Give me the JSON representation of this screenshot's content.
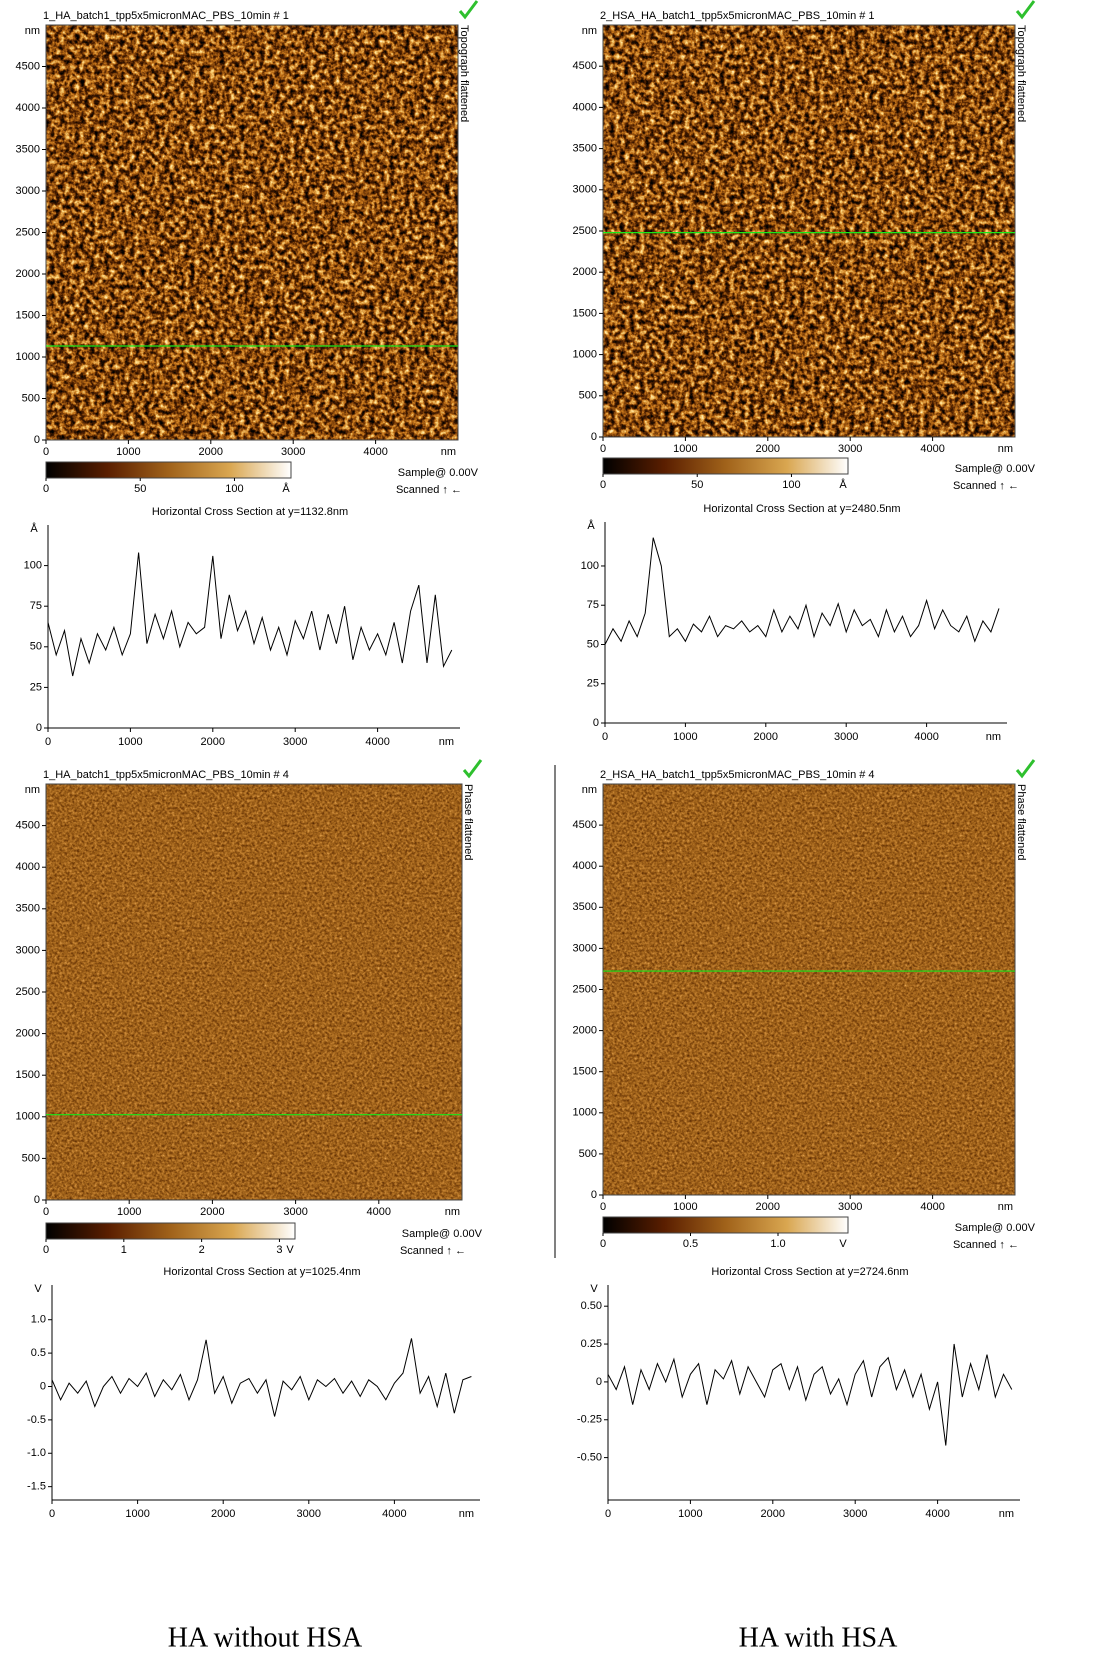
{
  "captions": [
    "HA without HSA",
    "HA with HSA"
  ],
  "chart_data": [
    {
      "type": "image",
      "title": "1_HA_batch1_tpp5x5micronMAC_PBS_10min # 1",
      "side_label": "Topograph flattened",
      "xlim": [
        0,
        5000
      ],
      "ylim": [
        0,
        5000
      ],
      "xticks": [
        0,
        1000,
        2000,
        3000,
        4000
      ],
      "yticks": [
        0,
        500,
        1000,
        1500,
        2000,
        2500,
        3000,
        3500,
        4000,
        4500
      ],
      "x_unit": "nm",
      "y_unit": "nm",
      "line_y": 1132.8,
      "line_color": "#19e619",
      "colorbar": {
        "clim": [
          0,
          130
        ],
        "ticks": [
          0,
          50,
          100
        ],
        "unit": "Å",
        "colors": [
          "#000000",
          "#5a1e00",
          "#a0621a",
          "#d9a650",
          "#ffffff"
        ]
      },
      "bias": "Sample@ 0.00V",
      "scan": "Scanned ↑ ←"
    },
    {
      "type": "line",
      "title": "Horizontal Cross Section at y=1132.8nm",
      "color": "#000000",
      "x": [
        0,
        100,
        200,
        300,
        400,
        500,
        600,
        700,
        800,
        900,
        1000,
        1100,
        1200,
        1300,
        1400,
        1500,
        1600,
        1700,
        1800,
        1900,
        2000,
        2100,
        2200,
        2300,
        2400,
        2500,
        2600,
        2700,
        2800,
        2900,
        3000,
        3100,
        3200,
        3300,
        3400,
        3500,
        3600,
        3700,
        3800,
        3900,
        4000,
        4100,
        4200,
        4300,
        4400,
        4500,
        4600,
        4700,
        4800,
        4900
      ],
      "values": [
        65,
        45,
        60,
        32,
        55,
        40,
        58,
        48,
        62,
        45,
        58,
        108,
        52,
        70,
        55,
        72,
        50,
        65,
        58,
        62,
        106,
        55,
        82,
        60,
        72,
        52,
        68,
        48,
        62,
        45,
        66,
        55,
        72,
        48,
        70,
        52,
        75,
        42,
        62,
        48,
        58,
        45,
        65,
        40,
        72,
        88,
        40,
        82,
        38,
        48
      ],
      "xlim": [
        0,
        5000
      ],
      "ylim": [
        0,
        125
      ],
      "xticks": [
        0,
        1000,
        2000,
        3000,
        4000
      ],
      "yticks": [
        0,
        25,
        50,
        75,
        100
      ],
      "x_unit": "nm",
      "y_unit": "Å"
    },
    {
      "type": "image",
      "title": "2_HSA_HA_batch1_tpp5x5micronMAC_PBS_10min # 1",
      "side_label": "Topograph flattened",
      "xlim": [
        0,
        5000
      ],
      "ylim": [
        0,
        5000
      ],
      "xticks": [
        0,
        1000,
        2000,
        3000,
        4000
      ],
      "yticks": [
        0,
        500,
        1000,
        1500,
        2000,
        2500,
        3000,
        3500,
        4000,
        4500
      ],
      "x_unit": "nm",
      "y_unit": "nm",
      "line_y": 2480.5,
      "line_color": "#19e619",
      "colorbar": {
        "clim": [
          0,
          130
        ],
        "ticks": [
          0,
          50,
          100
        ],
        "unit": "Å",
        "colors": [
          "#000000",
          "#5a1e00",
          "#a0621a",
          "#d9a650",
          "#ffffff"
        ]
      },
      "bias": "Sample@ 0.00V",
      "scan": "Scanned ↑ ←"
    },
    {
      "type": "line",
      "title": "Horizontal Cross Section at y=2480.5nm",
      "color": "#000000",
      "x": [
        0,
        100,
        200,
        300,
        400,
        500,
        600,
        700,
        800,
        900,
        1000,
        1100,
        1200,
        1300,
        1400,
        1500,
        1600,
        1700,
        1800,
        1900,
        2000,
        2100,
        2200,
        2300,
        2400,
        2500,
        2600,
        2700,
        2800,
        2900,
        3000,
        3100,
        3200,
        3300,
        3400,
        3500,
        3600,
        3700,
        3800,
        3900,
        4000,
        4100,
        4200,
        4300,
        4400,
        4500,
        4600,
        4700,
        4800,
        4900
      ],
      "values": [
        50,
        60,
        52,
        65,
        55,
        70,
        118,
        100,
        55,
        60,
        52,
        63,
        58,
        68,
        55,
        62,
        60,
        65,
        58,
        62,
        55,
        72,
        58,
        68,
        60,
        75,
        55,
        70,
        62,
        76,
        58,
        72,
        62,
        66,
        55,
        72,
        58,
        68,
        55,
        62,
        78,
        60,
        72,
        62,
        58,
        68,
        52,
        65,
        58,
        73
      ],
      "xlim": [
        0,
        5000
      ],
      "ylim": [
        0,
        128
      ],
      "xticks": [
        0,
        1000,
        2000,
        3000,
        4000
      ],
      "yticks": [
        0,
        25,
        50,
        75,
        100
      ],
      "x_unit": "nm",
      "y_unit": "Å"
    },
    {
      "type": "image",
      "title": "1_HA_batch1_tpp5x5micronMAC_PBS_10min # 4",
      "side_label": "Phase flattened",
      "xlim": [
        0,
        5000
      ],
      "ylim": [
        0,
        5000
      ],
      "xticks": [
        0,
        1000,
        2000,
        3000,
        4000
      ],
      "yticks": [
        0,
        500,
        1000,
        1500,
        2000,
        2500,
        3000,
        3500,
        4000,
        4500
      ],
      "x_unit": "nm",
      "y_unit": "nm",
      "line_y": 1025.4,
      "line_color": "#19e619",
      "colorbar": {
        "clim": [
          0,
          3.2
        ],
        "ticks": [
          0,
          1,
          2,
          3
        ],
        "unit": "V",
        "colors": [
          "#000000",
          "#5a1e00",
          "#a0621a",
          "#d9a650",
          "#ffffff"
        ]
      },
      "bias": "Sample@ 0.00V",
      "scan": "Scanned ↑ ←"
    },
    {
      "type": "line",
      "title": "Horizontal Cross Section at y=1025.4nm",
      "color": "#000000",
      "x": [
        0,
        100,
        200,
        300,
        400,
        500,
        600,
        700,
        800,
        900,
        1000,
        1100,
        1200,
        1300,
        1400,
        1500,
        1600,
        1700,
        1800,
        1900,
        2000,
        2100,
        2200,
        2300,
        2400,
        2500,
        2600,
        2700,
        2800,
        2900,
        3000,
        3100,
        3200,
        3300,
        3400,
        3500,
        3600,
        3700,
        3800,
        3900,
        4000,
        4100,
        4200,
        4300,
        4400,
        4500,
        4600,
        4700,
        4800,
        4900
      ],
      "values": [
        0.1,
        -0.2,
        0.05,
        -0.1,
        0.08,
        -0.3,
        0.0,
        0.15,
        -0.1,
        0.12,
        0.0,
        0.2,
        -0.15,
        0.1,
        -0.05,
        0.18,
        -0.2,
        0.1,
        0.7,
        -0.1,
        0.15,
        -0.25,
        0.05,
        0.12,
        -0.1,
        0.1,
        -0.45,
        0.08,
        -0.05,
        0.15,
        -0.2,
        0.1,
        0.0,
        0.12,
        -0.1,
        0.08,
        -0.15,
        0.1,
        0.0,
        -0.2,
        0.05,
        0.2,
        0.72,
        -0.1,
        0.15,
        -0.3,
        0.2,
        -0.4,
        0.1,
        0.15
      ],
      "xlim": [
        0,
        5000
      ],
      "ylim": [
        -1.7,
        1.52
      ],
      "xticks": [
        0,
        1000,
        2000,
        3000,
        4000
      ],
      "yticks": [
        -1.5,
        {
          "value": -1,
          "label": "-1.0"
        },
        -0.5,
        0,
        0.5,
        {
          "value": 1,
          "label": "1.0"
        }
      ],
      "x_unit": "nm",
      "y_unit": "V"
    },
    {
      "type": "image",
      "title": "2_HSA_HA_batch1_tpp5x5micronMAC_PBS_10min # 4",
      "side_label": "Phase flattened",
      "xlim": [
        0,
        5000
      ],
      "ylim": [
        0,
        5000
      ],
      "xticks": [
        0,
        1000,
        2000,
        3000,
        4000
      ],
      "yticks": [
        0,
        500,
        1000,
        1500,
        2000,
        2500,
        3000,
        3500,
        4000,
        4500
      ],
      "x_unit": "nm",
      "y_unit": "nm",
      "line_y": 2724.6,
      "line_color": "#19e619",
      "colorbar": {
        "clim": [
          0,
          1.4
        ],
        "ticks": [
          0,
          0.5,
          {
            "value": 1,
            "label": "1.0"
          }
        ],
        "unit": "V",
        "colors": [
          "#000000",
          "#5a1e00",
          "#a0621a",
          "#d9a650",
          "#ffffff"
        ]
      },
      "bias": "Sample@ 0.00V",
      "scan": "Scanned ↑ ←"
    },
    {
      "type": "line",
      "title": "Horizontal Cross Section at y=2724.6nm",
      "color": "#000000",
      "x": [
        0,
        100,
        200,
        300,
        400,
        500,
        600,
        700,
        800,
        900,
        1000,
        1100,
        1200,
        1300,
        1400,
        1500,
        1600,
        1700,
        1800,
        1900,
        2000,
        2100,
        2200,
        2300,
        2400,
        2500,
        2600,
        2700,
        2800,
        2900,
        3000,
        3100,
        3200,
        3300,
        3400,
        3500,
        3600,
        3700,
        3800,
        3900,
        4000,
        4100,
        4200,
        4300,
        4400,
        4500,
        4600,
        4700,
        4800,
        4900
      ],
      "values": [
        0.05,
        -0.05,
        0.1,
        -0.15,
        0.08,
        -0.05,
        0.12,
        0.0,
        0.15,
        -0.1,
        0.05,
        0.12,
        -0.15,
        0.08,
        0.02,
        0.14,
        -0.08,
        0.1,
        0.0,
        -0.1,
        0.08,
        0.12,
        -0.05,
        0.1,
        -0.12,
        0.05,
        0.1,
        -0.08,
        0.02,
        -0.15,
        0.05,
        0.14,
        -0.1,
        0.1,
        0.16,
        -0.05,
        0.08,
        -0.1,
        0.05,
        -0.18,
        0.0,
        -0.42,
        0.25,
        -0.1,
        0.12,
        -0.05,
        0.18,
        -0.1,
        0.05,
        -0.05
      ],
      "xlim": [
        0,
        5000
      ],
      "ylim": [
        -0.78,
        0.64
      ],
      "xticks": [
        0,
        1000,
        2000,
        3000,
        4000
      ],
      "yticks": [
        {
          "value": -0.5,
          "label": "-0.50"
        },
        -0.25,
        0,
        0.25,
        {
          "value": 0.5,
          "label": "0.50"
        }
      ],
      "x_unit": "nm",
      "y_unit": "V"
    }
  ]
}
